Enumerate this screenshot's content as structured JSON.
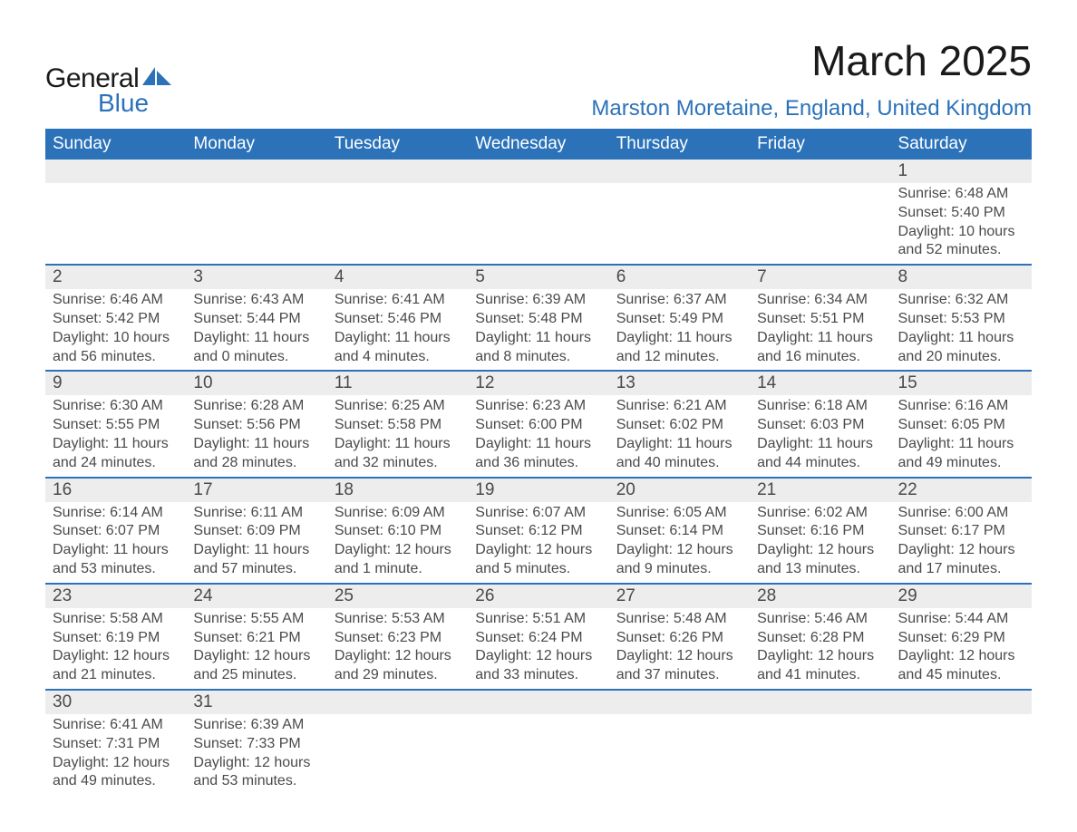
{
  "logo": {
    "word1": "General",
    "word2": "Blue",
    "sail_color": "#2b72b9",
    "text_dark": "#1a1a1a"
  },
  "title": "March 2025",
  "location": "Marston Moretaine, England, United Kingdom",
  "colors": {
    "header_bg": "#2b72b9",
    "header_fg": "#ffffff",
    "daynum_bg": "#ededed",
    "rule": "#2b72b9",
    "body_text": "#4a4a4a",
    "page_bg": "#ffffff"
  },
  "fonts": {
    "title_pt": 46,
    "location_pt": 24,
    "dow_pt": 19,
    "daynum_pt": 19,
    "detail_pt": 16
  },
  "days_of_week": [
    "Sunday",
    "Monday",
    "Tuesday",
    "Wednesday",
    "Thursday",
    "Friday",
    "Saturday"
  ],
  "weeks": [
    [
      null,
      null,
      null,
      null,
      null,
      null,
      {
        "n": "1",
        "sunrise": "6:48 AM",
        "sunset": "5:40 PM",
        "daylight": "10 hours and 52 minutes."
      }
    ],
    [
      {
        "n": "2",
        "sunrise": "6:46 AM",
        "sunset": "5:42 PM",
        "daylight": "10 hours and 56 minutes."
      },
      {
        "n": "3",
        "sunrise": "6:43 AM",
        "sunset": "5:44 PM",
        "daylight": "11 hours and 0 minutes."
      },
      {
        "n": "4",
        "sunrise": "6:41 AM",
        "sunset": "5:46 PM",
        "daylight": "11 hours and 4 minutes."
      },
      {
        "n": "5",
        "sunrise": "6:39 AM",
        "sunset": "5:48 PM",
        "daylight": "11 hours and 8 minutes."
      },
      {
        "n": "6",
        "sunrise": "6:37 AM",
        "sunset": "5:49 PM",
        "daylight": "11 hours and 12 minutes."
      },
      {
        "n": "7",
        "sunrise": "6:34 AM",
        "sunset": "5:51 PM",
        "daylight": "11 hours and 16 minutes."
      },
      {
        "n": "8",
        "sunrise": "6:32 AM",
        "sunset": "5:53 PM",
        "daylight": "11 hours and 20 minutes."
      }
    ],
    [
      {
        "n": "9",
        "sunrise": "6:30 AM",
        "sunset": "5:55 PM",
        "daylight": "11 hours and 24 minutes."
      },
      {
        "n": "10",
        "sunrise": "6:28 AM",
        "sunset": "5:56 PM",
        "daylight": "11 hours and 28 minutes."
      },
      {
        "n": "11",
        "sunrise": "6:25 AM",
        "sunset": "5:58 PM",
        "daylight": "11 hours and 32 minutes."
      },
      {
        "n": "12",
        "sunrise": "6:23 AM",
        "sunset": "6:00 PM",
        "daylight": "11 hours and 36 minutes."
      },
      {
        "n": "13",
        "sunrise": "6:21 AM",
        "sunset": "6:02 PM",
        "daylight": "11 hours and 40 minutes."
      },
      {
        "n": "14",
        "sunrise": "6:18 AM",
        "sunset": "6:03 PM",
        "daylight": "11 hours and 44 minutes."
      },
      {
        "n": "15",
        "sunrise": "6:16 AM",
        "sunset": "6:05 PM",
        "daylight": "11 hours and 49 minutes."
      }
    ],
    [
      {
        "n": "16",
        "sunrise": "6:14 AM",
        "sunset": "6:07 PM",
        "daylight": "11 hours and 53 minutes."
      },
      {
        "n": "17",
        "sunrise": "6:11 AM",
        "sunset": "6:09 PM",
        "daylight": "11 hours and 57 minutes."
      },
      {
        "n": "18",
        "sunrise": "6:09 AM",
        "sunset": "6:10 PM",
        "daylight": "12 hours and 1 minute."
      },
      {
        "n": "19",
        "sunrise": "6:07 AM",
        "sunset": "6:12 PM",
        "daylight": "12 hours and 5 minutes."
      },
      {
        "n": "20",
        "sunrise": "6:05 AM",
        "sunset": "6:14 PM",
        "daylight": "12 hours and 9 minutes."
      },
      {
        "n": "21",
        "sunrise": "6:02 AM",
        "sunset": "6:16 PM",
        "daylight": "12 hours and 13 minutes."
      },
      {
        "n": "22",
        "sunrise": "6:00 AM",
        "sunset": "6:17 PM",
        "daylight": "12 hours and 17 minutes."
      }
    ],
    [
      {
        "n": "23",
        "sunrise": "5:58 AM",
        "sunset": "6:19 PM",
        "daylight": "12 hours and 21 minutes."
      },
      {
        "n": "24",
        "sunrise": "5:55 AM",
        "sunset": "6:21 PM",
        "daylight": "12 hours and 25 minutes."
      },
      {
        "n": "25",
        "sunrise": "5:53 AM",
        "sunset": "6:23 PM",
        "daylight": "12 hours and 29 minutes."
      },
      {
        "n": "26",
        "sunrise": "5:51 AM",
        "sunset": "6:24 PM",
        "daylight": "12 hours and 33 minutes."
      },
      {
        "n": "27",
        "sunrise": "5:48 AM",
        "sunset": "6:26 PM",
        "daylight": "12 hours and 37 minutes."
      },
      {
        "n": "28",
        "sunrise": "5:46 AM",
        "sunset": "6:28 PM",
        "daylight": "12 hours and 41 minutes."
      },
      {
        "n": "29",
        "sunrise": "5:44 AM",
        "sunset": "6:29 PM",
        "daylight": "12 hours and 45 minutes."
      }
    ],
    [
      {
        "n": "30",
        "sunrise": "6:41 AM",
        "sunset": "7:31 PM",
        "daylight": "12 hours and 49 minutes."
      },
      {
        "n": "31",
        "sunrise": "6:39 AM",
        "sunset": "7:33 PM",
        "daylight": "12 hours and 53 minutes."
      },
      null,
      null,
      null,
      null,
      null
    ]
  ],
  "labels": {
    "sunrise": "Sunrise: ",
    "sunset": "Sunset: ",
    "daylight": "Daylight: "
  }
}
